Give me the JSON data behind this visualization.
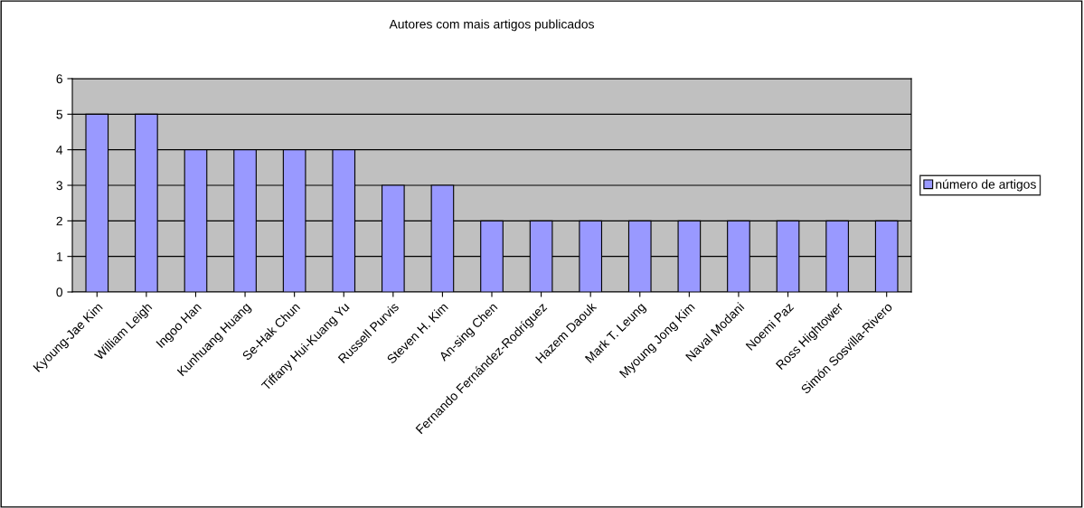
{
  "chart_data": {
    "type": "bar",
    "title": "Autores com mais artigos publicados",
    "categories": [
      "Kyoung-Jae Kim",
      "William Leigh",
      "Ingoo Han",
      "Kunhuang Huang",
      "Se-Hak Chun",
      "Tiffany Hui-Kuang Yu",
      "Russell Purvis",
      "Steven H. Kim",
      "An-sing Chen",
      "Fernando Fernández-Rodríguez",
      "Hazem Daouk",
      "Mark T. Leung",
      "Myoung Jong Kim",
      "Naval Modani",
      "Noemi Paz",
      "Ross Hightower",
      "Simón Sosvilla-Rivero"
    ],
    "series": [
      {
        "name": "número de artigos",
        "color": "#9999ff",
        "values": [
          5,
          5,
          4,
          4,
          4,
          4,
          3,
          3,
          2,
          2,
          2,
          2,
          2,
          2,
          2,
          2,
          2
        ]
      }
    ],
    "ylim": [
      0,
      6
    ],
    "yticks": [
      0,
      1,
      2,
      3,
      4,
      5,
      6
    ],
    "grid": "y",
    "legend": "right"
  }
}
